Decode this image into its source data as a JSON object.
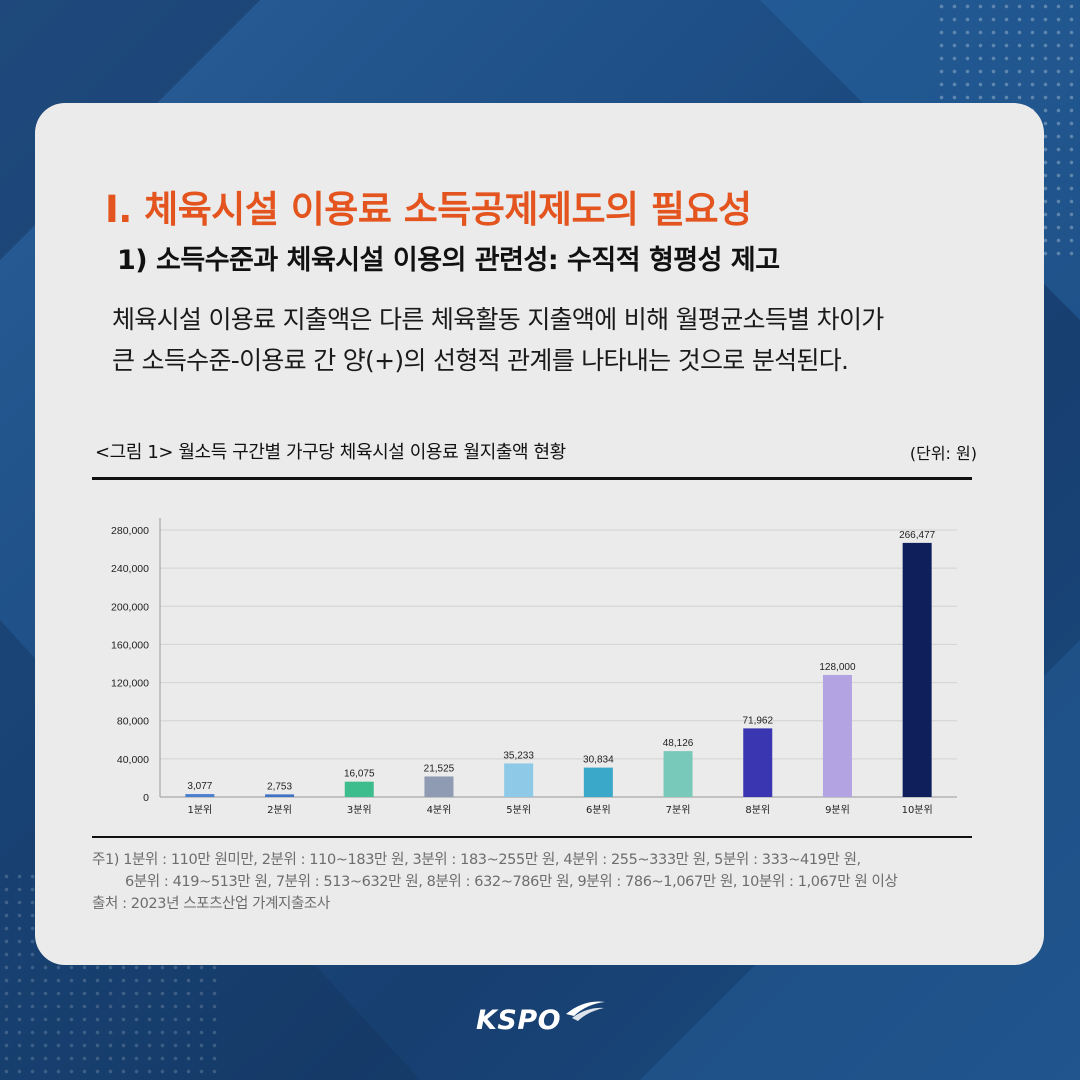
{
  "brand": {
    "logo_text": "KSPO",
    "colors": {
      "title": "#e3541e",
      "card": "#ebebeb",
      "background": "#1e4f86"
    }
  },
  "header": {
    "title": "I. 체육시설 이용료 소득공제제도의 필요성",
    "subtitle": "1) 소득수준과 체육시설 이용의 관련성: 수직적 형평성 제고"
  },
  "body": {
    "line1": "체육시설 이용료 지출액은 다른 체육활동 지출액에 비해 월평균소득별 차이가",
    "line2": "큰 소득수준-이용료 간 양(+)의 선형적 관계를 나타내는 것으로 분석된다."
  },
  "figure": {
    "caption": "<그림 1> 월소득 구간별 가구당 체육시설 이용료 월지출액 현황",
    "unit": "(단위: 원)"
  },
  "chart_data": {
    "type": "bar",
    "categories": [
      "1분위",
      "2분위",
      "3분위",
      "4분위",
      "5분위",
      "6분위",
      "7분위",
      "8분위",
      "9분위",
      "10분위"
    ],
    "values": [
      3077,
      2753,
      16075,
      21525,
      35233,
      30834,
      48126,
      71962,
      128000,
      266477
    ],
    "value_labels": [
      "3,077",
      "2,753",
      "16,075",
      "21,525",
      "35,233",
      "30,834",
      "48,126",
      "71,962",
      "128,000",
      "266,477"
    ],
    "bar_colors": [
      "#4a7fd0",
      "#3e72c4",
      "#3dbd8d",
      "#8f9bb3",
      "#8ecae8",
      "#3aa8c8",
      "#79c9bb",
      "#3a35b0",
      "#b3a3e3",
      "#0e1f5c"
    ],
    "yticks": [
      0,
      40000,
      80000,
      120000,
      160000,
      200000,
      240000,
      280000
    ],
    "ytick_labels": [
      "0",
      "40,000",
      "80,000",
      "120,000",
      "160,000",
      "200,000",
      "240,000",
      "280,000"
    ],
    "ylim": [
      0,
      280000
    ],
    "grid": true,
    "legend": "none",
    "xlabel": "",
    "ylabel": ""
  },
  "notes": {
    "line1": "주1) 1분위 : 110만 원미만, 2분위 : 110~183만 원, 3분위 : 183~255만 원, 4분위 : 255~333만 원, 5분위 : 333~419만 원,",
    "line2": "6분위 : 419~513만 원, 7분위 : 513~632만 원, 8분위 : 632~786만 원, 9분위 : 786~1,067만 원, 10분위 : 1,067만 원 이상",
    "source": "출처 : 2023년 스포츠산업 가계지출조사"
  }
}
